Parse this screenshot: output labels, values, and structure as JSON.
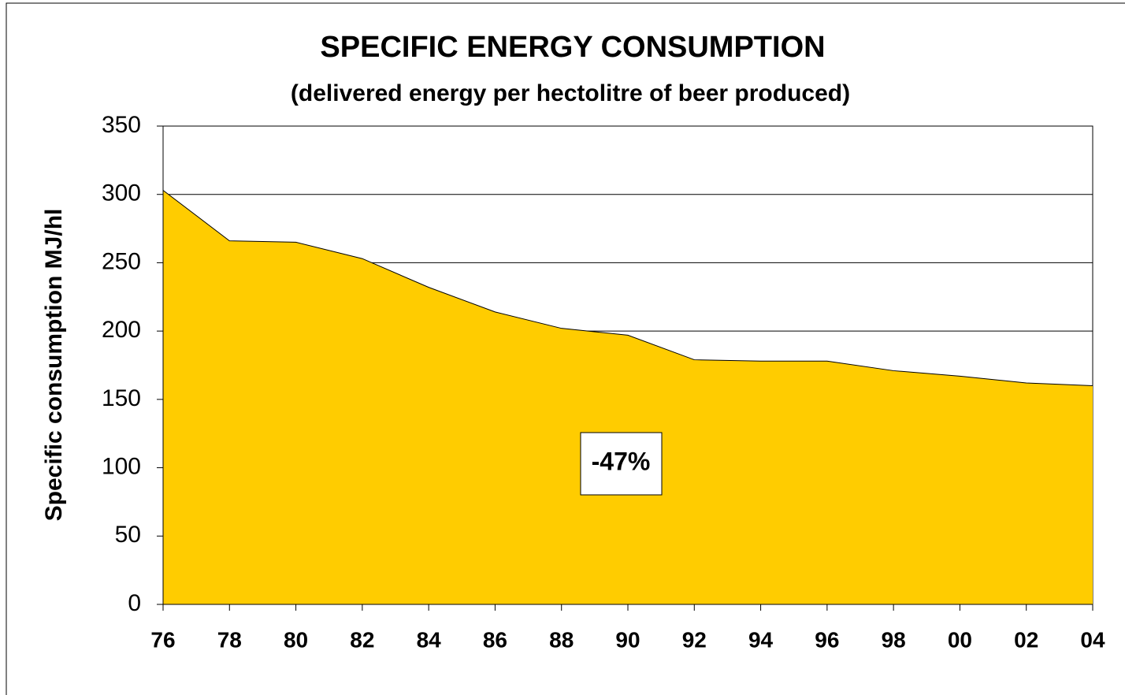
{
  "chart_data": {
    "type": "area",
    "title": "SPECIFIC ENERGY CONSUMPTION",
    "subtitle": "(delivered energy per hectolitre of beer produced)",
    "y_label": "Specific consumption MJ/hl",
    "annotation": "-47%",
    "categories": [
      "76",
      "78",
      "80",
      "82",
      "84",
      "86",
      "88",
      "90",
      "92",
      "94",
      "96",
      "98",
      "00",
      "02",
      "04"
    ],
    "values": [
      303,
      266,
      265,
      253,
      232,
      214,
      202,
      197,
      179,
      178,
      178,
      171,
      167,
      162,
      160
    ],
    "color": "#ffcc00",
    "ylim": [
      0,
      350
    ],
    "yticks": [
      0,
      50,
      100,
      150,
      200,
      250,
      300,
      350
    ],
    "grid": true
  }
}
